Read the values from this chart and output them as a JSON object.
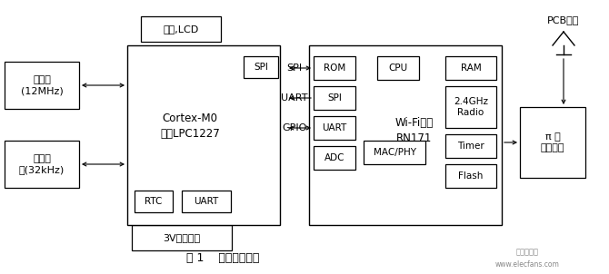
{
  "bg_color": "#ffffff",
  "caption": "图 1    硬件设计框图",
  "watermark1": "电子发烧友",
  "watermark2": "www.elecfans.com",
  "left_box1_label": "主时钟\n(12MHz)",
  "left_box2_label": "睡眠时\n钟(32kHz)",
  "anjian_label": "按键,LCD",
  "power_label": "3V供电单元",
  "cortex_label": "Cortex-M0\n内核LPC1227",
  "spi_label": "SPI",
  "rtc_label": "RTC",
  "uart_label": "UART",
  "wifi_label": "Wi-Fi模组\nRN171",
  "rom_label": "ROM",
  "spi2_label": "SPI",
  "uart2_label": "UART",
  "adc_label": "ADC",
  "cpu_label": "CPU",
  "macphy_label": "MAC/PHY",
  "ram_label": "RAM",
  "radio_label": "2.4GHz\nRadio",
  "timer_label": "Timer",
  "flash_label": "Flash",
  "pi_label": "π 型\n滤波电路",
  "pcb_label": "PCB天线",
  "spi_bus": "SPI",
  "uart_bus": "UART",
  "gpio_bus": "GPIO"
}
